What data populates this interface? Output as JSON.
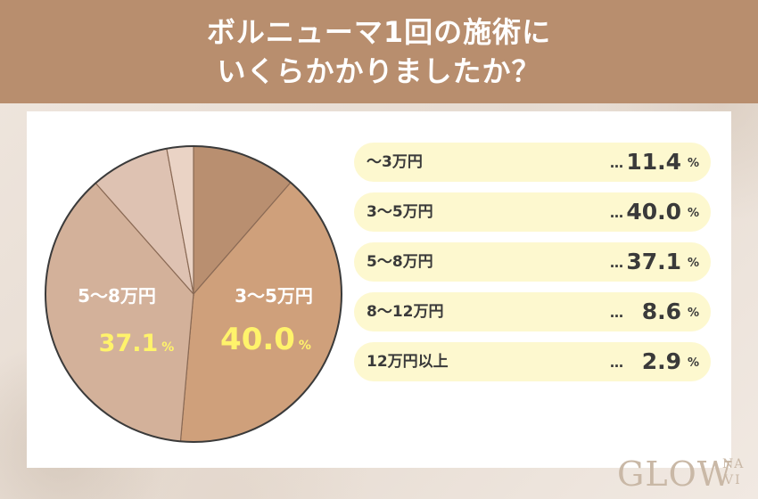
{
  "header": {
    "title_line1": "ボルニューマ1回の施術に",
    "title_line2": "いくらかかりましたか？"
  },
  "chart_data": {
    "type": "pie",
    "title": "ボルニューマ1回の施術にいくらかかりましたか？",
    "categories": [
      "〜3万円",
      "3〜5万円",
      "5〜8万円",
      "8〜12万円",
      "12万円以上"
    ],
    "values": [
      11.4,
      40.0,
      37.1,
      8.6,
      2.9
    ],
    "value_labels": [
      "11.4",
      "40.0",
      "37.1",
      "8.6",
      "2.9"
    ],
    "unit": "%",
    "colors": [
      "#b98f70",
      "#cfa07b",
      "#d3b19a",
      "#dec2b2",
      "#ead3c5"
    ],
    "legend_placement": "right",
    "dots": "…"
  },
  "logo": {
    "main": "GLOW",
    "sub1": "NA",
    "sub2": "VI"
  }
}
